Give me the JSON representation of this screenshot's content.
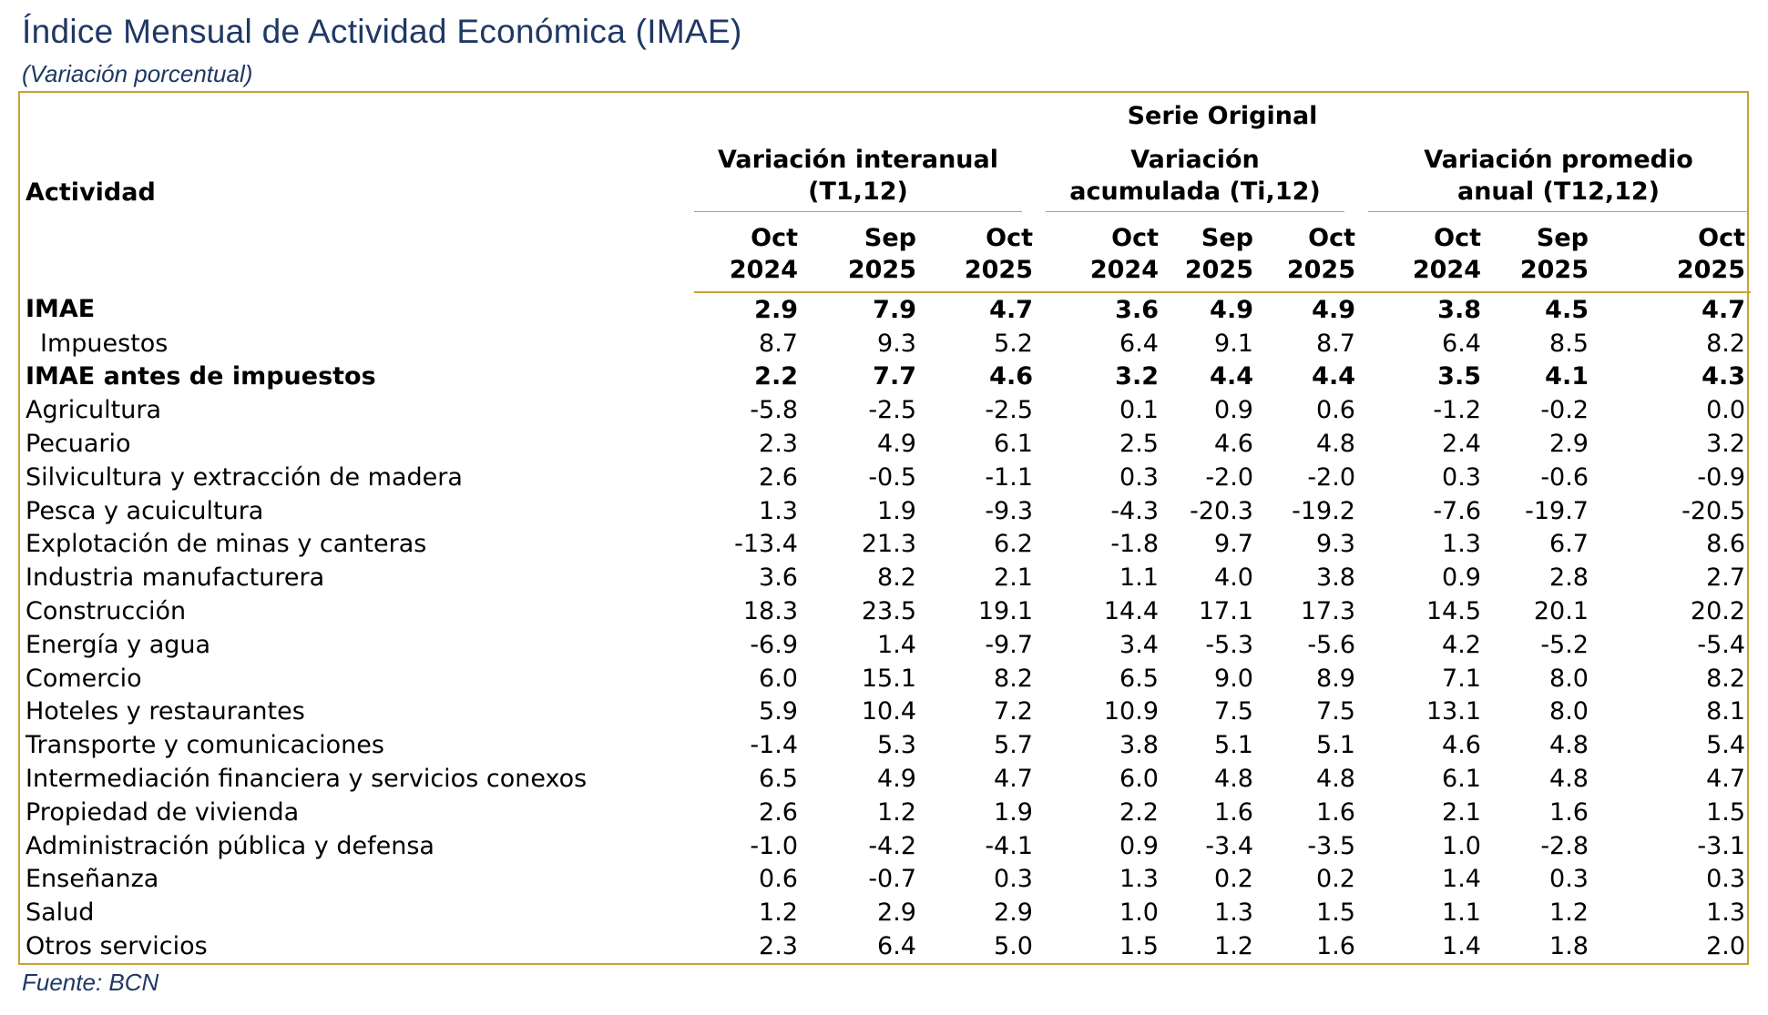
{
  "title": "Índice Mensual de Actividad Económica (IMAE)",
  "subtitle": "(Variación porcentual)",
  "source": "Fuente: BCN",
  "header": {
    "actividad": "Actividad",
    "serie": "Serie Original",
    "groups": [
      {
        "line1": "Variación interanual",
        "line2": "(T1,12)"
      },
      {
        "line1": "Variación",
        "line2": "acumulada (Ti,12)"
      },
      {
        "line1": "Variación promedio",
        "line2": "anual (T12,12)"
      }
    ],
    "periods": [
      {
        "month": "Oct",
        "year": "2024"
      },
      {
        "month": "Sep",
        "year": "2025"
      },
      {
        "month": "Oct",
        "year": "2025"
      }
    ]
  },
  "rows": [
    {
      "label": "IMAE",
      "values": [
        "2.9",
        "7.9",
        "4.7",
        "3.6",
        "4.9",
        "4.9",
        "3.8",
        "4.5",
        "4.7"
      ]
    },
    {
      "label": "Impuestos",
      "values": [
        "8.7",
        "9.3",
        "5.2",
        "6.4",
        "9.1",
        "8.7",
        "6.4",
        "8.5",
        "8.2"
      ]
    },
    {
      "label": "IMAE antes de impuestos",
      "values": [
        "2.2",
        "7.7",
        "4.6",
        "3.2",
        "4.4",
        "4.4",
        "3.5",
        "4.1",
        "4.3"
      ]
    },
    {
      "label": "Agricultura",
      "values": [
        "-5.8",
        "-2.5",
        "-2.5",
        "0.1",
        "0.9",
        "0.6",
        "-1.2",
        "-0.2",
        "0.0"
      ]
    },
    {
      "label": "Pecuario",
      "values": [
        "2.3",
        "4.9",
        "6.1",
        "2.5",
        "4.6",
        "4.8",
        "2.4",
        "2.9",
        "3.2"
      ]
    },
    {
      "label": "Silvicultura y extracción de madera",
      "values": [
        "2.6",
        "-0.5",
        "-1.1",
        "0.3",
        "-2.0",
        "-2.0",
        "0.3",
        "-0.6",
        "-0.9"
      ]
    },
    {
      "label": "Pesca y acuicultura",
      "values": [
        "1.3",
        "1.9",
        "-9.3",
        "-4.3",
        "-20.3",
        "-19.2",
        "-7.6",
        "-19.7",
        "-20.5"
      ]
    },
    {
      "label": "Explotación de minas y canteras",
      "values": [
        "-13.4",
        "21.3",
        "6.2",
        "-1.8",
        "9.7",
        "9.3",
        "1.3",
        "6.7",
        "8.6"
      ]
    },
    {
      "label": "Industria manufacturera",
      "values": [
        "3.6",
        "8.2",
        "2.1",
        "1.1",
        "4.0",
        "3.8",
        "0.9",
        "2.8",
        "2.7"
      ]
    },
    {
      "label": "Construcción",
      "values": [
        "18.3",
        "23.5",
        "19.1",
        "14.4",
        "17.1",
        "17.3",
        "14.5",
        "20.1",
        "20.2"
      ]
    },
    {
      "label": "Energía y agua",
      "values": [
        "-6.9",
        "1.4",
        "-9.7",
        "3.4",
        "-5.3",
        "-5.6",
        "4.2",
        "-5.2",
        "-5.4"
      ]
    },
    {
      "label": "Comercio",
      "values": [
        "6.0",
        "15.1",
        "8.2",
        "6.5",
        "9.0",
        "8.9",
        "7.1",
        "8.0",
        "8.2"
      ]
    },
    {
      "label": "Hoteles y restaurantes",
      "values": [
        "5.9",
        "10.4",
        "7.2",
        "10.9",
        "7.5",
        "7.5",
        "13.1",
        "8.0",
        "8.1"
      ]
    },
    {
      "label": "Transporte y comunicaciones",
      "values": [
        "-1.4",
        "5.3",
        "5.7",
        "3.8",
        "5.1",
        "5.1",
        "4.6",
        "4.8",
        "5.4"
      ]
    },
    {
      "label": "Intermediación financiera y servicios conexos",
      "values": [
        "6.5",
        "4.9",
        "4.7",
        "6.0",
        "4.8",
        "4.8",
        "6.1",
        "4.8",
        "4.7"
      ]
    },
    {
      "label": "Propiedad de vivienda",
      "values": [
        "2.6",
        "1.2",
        "1.9",
        "2.2",
        "1.6",
        "1.6",
        "2.1",
        "1.6",
        "1.5"
      ]
    },
    {
      "label": "Administración pública y defensa",
      "values": [
        "-1.0",
        "-4.2",
        "-4.1",
        "0.9",
        "-3.4",
        "-3.5",
        "1.0",
        "-2.8",
        "-3.1"
      ]
    },
    {
      "label": "Enseñanza",
      "values": [
        "0.6",
        "-0.7",
        "0.3",
        "1.3",
        "0.2",
        "0.2",
        "1.4",
        "0.3",
        "0.3"
      ]
    },
    {
      "label": "Salud",
      "values": [
        "1.2",
        "2.9",
        "2.9",
        "1.0",
        "1.3",
        "1.5",
        "1.1",
        "1.2",
        "1.3"
      ]
    },
    {
      "label": "Otros servicios",
      "values": [
        "2.3",
        "6.4",
        "5.0",
        "1.5",
        "1.2",
        "1.6",
        "1.4",
        "1.8",
        "2.0"
      ]
    }
  ],
  "colors": {
    "title": "#1f3864",
    "border": "#c8a232"
  }
}
